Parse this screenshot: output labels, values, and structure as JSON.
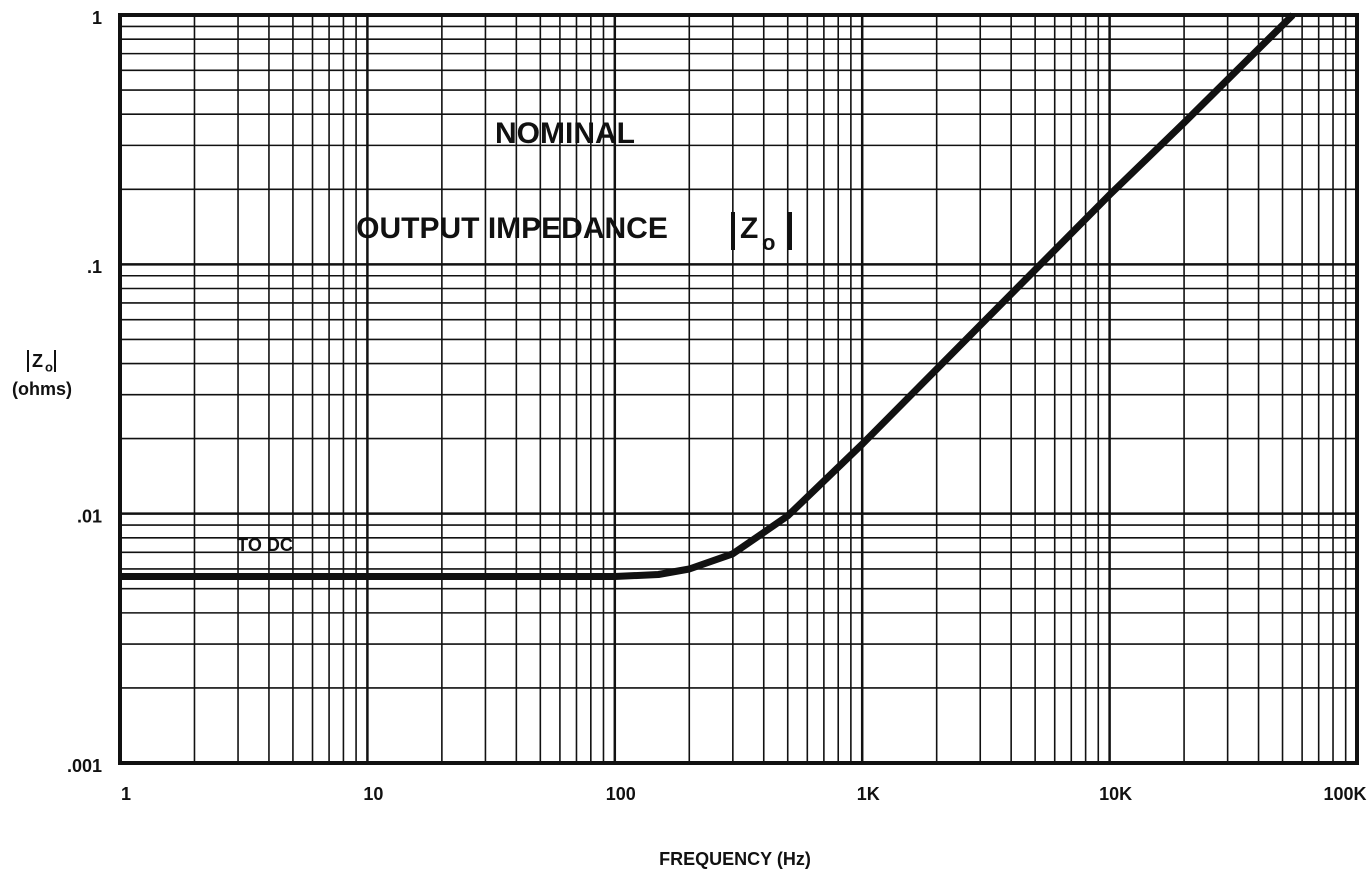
{
  "chart_data": {
    "type": "line",
    "annotations": [
      "NOMINAL",
      "OUTPUT IMPEDANCE",
      "TO DC"
    ],
    "annotation_symbol": {
      "main": "Z",
      "sub": "o"
    },
    "x_label": "FREQUENCY (Hz)",
    "y_label": {
      "main": "Z",
      "sub": "o",
      "unit": "(ohms)"
    },
    "x_log": true,
    "y_log": true,
    "grid": true,
    "xlim": [
      1,
      100000
    ],
    "ylim": [
      0.001,
      1
    ],
    "xticks": [
      1,
      10,
      100,
      {
        "value": 1000,
        "label": "1K"
      },
      {
        "value": 10000,
        "label": "10K"
      },
      {
        "value": 100000,
        "label": "100K"
      }
    ],
    "yticks": [
      {
        "value": 0.001,
        "label": ".001"
      },
      {
        "value": 0.01,
        "label": ".01"
      },
      {
        "value": 0.1,
        "label": ".1"
      },
      1
    ],
    "xminor": [
      2,
      3,
      4,
      5,
      6,
      7,
      8,
      9,
      20,
      30,
      40,
      50,
      60,
      70,
      80,
      90,
      200,
      300,
      400,
      500,
      600,
      700,
      800,
      900,
      2000,
      3000,
      4000,
      5000,
      6000,
      7000,
      8000,
      9000,
      20000,
      30000,
      40000,
      50000,
      60000,
      70000,
      80000,
      90000
    ],
    "yminor": [
      0.002,
      0.003,
      0.004,
      0.005,
      0.006,
      0.007,
      0.008,
      0.009,
      0.02,
      0.03,
      0.04,
      0.05,
      0.06,
      0.07,
      0.08,
      0.09,
      0.2,
      0.3,
      0.4,
      0.5,
      0.6,
      0.7,
      0.8,
      0.9
    ],
    "x": [
      1,
      10,
      100,
      150,
      200,
      300,
      500,
      1000,
      2000,
      5000,
      10000,
      20000,
      55000
    ],
    "series": [
      {
        "name": "|Zo|",
        "color": "#111111",
        "values": [
          0.0056,
          0.0056,
          0.0056,
          0.0057,
          0.006,
          0.0069,
          0.0098,
          0.019,
          0.038,
          0.095,
          0.19,
          0.37,
          1
        ]
      }
    ]
  }
}
